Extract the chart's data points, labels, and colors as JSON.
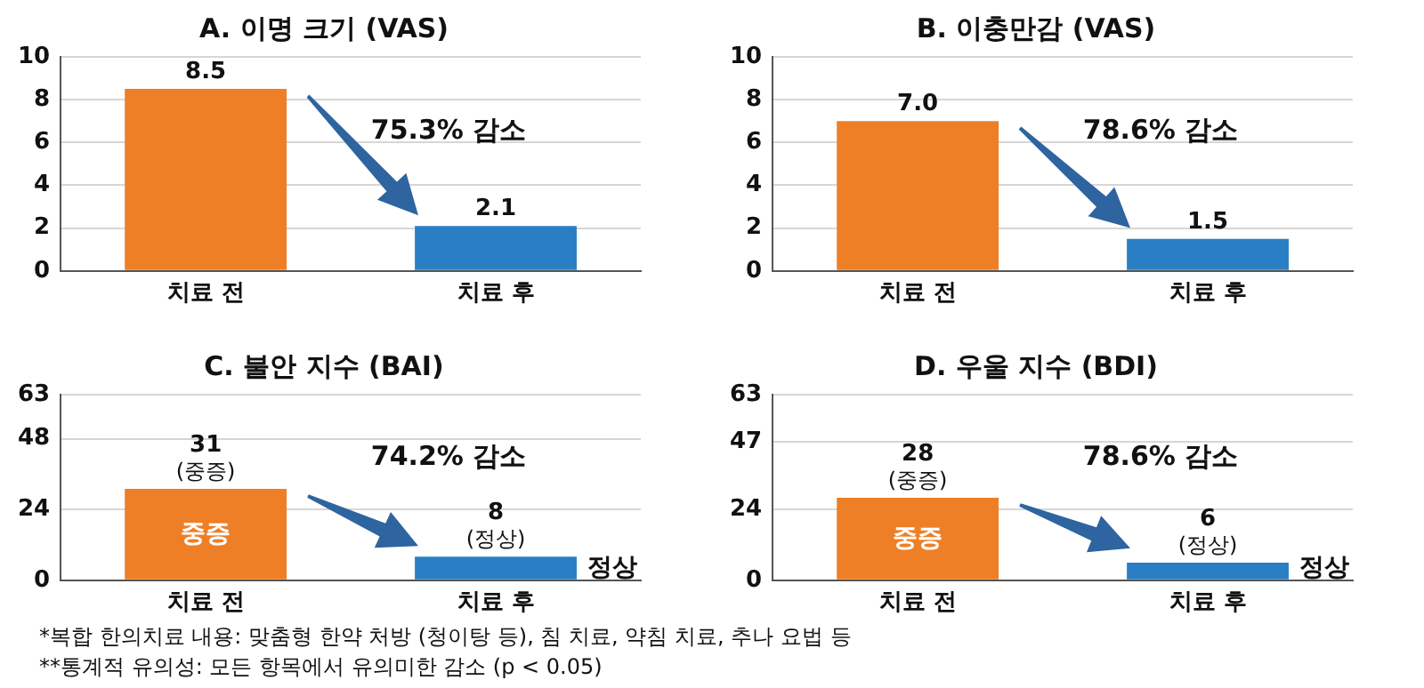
{
  "chart_data": [
    {
      "type": "bar",
      "title": "A. 이명 크기 (VAS)",
      "categories": [
        "치료 전",
        "치료 후"
      ],
      "values": [
        8.5,
        2.1
      ],
      "colors": [
        "#ee7f26",
        "#2a7fc4"
      ],
      "ylim": [
        0,
        10
      ],
      "yticks": [
        0,
        2,
        4,
        6,
        8,
        10
      ],
      "grid": "y",
      "data_labels": true,
      "annotations": [
        "75.3% 감소"
      ]
    },
    {
      "type": "bar",
      "title": "B. 이충만감 (VAS)",
      "categories": [
        "치료 전",
        "치료 후"
      ],
      "values": [
        7.0,
        1.5
      ],
      "colors": [
        "#ee7f26",
        "#2a7fc4"
      ],
      "ylim": [
        0,
        10
      ],
      "yticks": [
        0,
        2,
        4,
        6,
        8,
        10
      ],
      "grid": "y",
      "value_labels": [
        "7.0",
        "1.5"
      ],
      "annotations": [
        "78.6% 감소"
      ]
    },
    {
      "type": "bar",
      "title": "C. 불안 지수 (BAI)",
      "categories": [
        "치료 전",
        "치료 후"
      ],
      "values": [
        31,
        8
      ],
      "colors": [
        "#ee7f26",
        "#2a7fc4"
      ],
      "ylim": [
        0,
        63
      ],
      "yticks": [
        0,
        24,
        48,
        63
      ],
      "grid": "y",
      "value_labels": [
        "31\n(중증)",
        "8\n(정상)"
      ],
      "annotations": [
        "74.2% 감소",
        "정상",
        "중증"
      ]
    },
    {
      "type": "bar",
      "title": "D. 우울 지수 (BDI)",
      "categories": [
        "치료 전",
        "치료 후"
      ],
      "values": [
        28,
        6
      ],
      "colors": [
        "#ee7f26",
        "#2a7fc4"
      ],
      "ylim": [
        0,
        63
      ],
      "yticks": [
        0,
        24,
        47,
        63
      ],
      "grid": "y",
      "value_labels": [
        "28\n(중증)",
        "6\n(정상)"
      ],
      "annotations": [
        "78.6% 감소",
        "정상",
        "중증"
      ]
    },
    {
      "type": "other",
      "annotations": [
        "*복합 한의치료 내용: 맞춤형 한약 처방 (청이탕 등), 침 치료, 약침 치료, 추나 요법 등",
        "**통계적 유의성: 모든 항목에서 유의미한 감소 (p < 0.05)"
      ]
    }
  ]
}
